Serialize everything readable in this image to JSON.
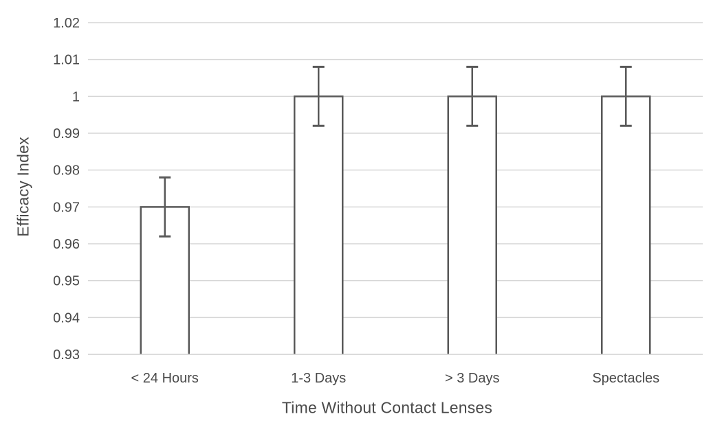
{
  "chart_data": {
    "type": "bar",
    "title": "",
    "xlabel": "Time Without Contact Lenses",
    "ylabel": "Efficacy Index",
    "categories": [
      "< 24 Hours",
      "1-3 Days",
      "> 3 Days",
      "Spectacles"
    ],
    "values": [
      0.97,
      1.0,
      1.0,
      1.0
    ],
    "error_bars": {
      "plus": [
        0.008,
        0.008,
        0.008,
        0.008
      ],
      "minus": [
        0.008,
        0.008,
        0.008,
        0.008
      ]
    },
    "ylim": [
      0.93,
      1.02
    ],
    "ytick_step": 0.01,
    "ytick_labels": [
      "0.93",
      "0.94",
      "0.95",
      "0.96",
      "0.97",
      "0.98",
      "0.99",
      "1",
      "1.01",
      "1.02"
    ],
    "grid": true,
    "legend": "none",
    "colors": {
      "background": "#ffffff",
      "bar_fill": "#ffffff",
      "bar_border": "#595959",
      "error_bar": "#595959",
      "gridline": "#d6d6d6",
      "text": "#4a4a4a"
    }
  }
}
